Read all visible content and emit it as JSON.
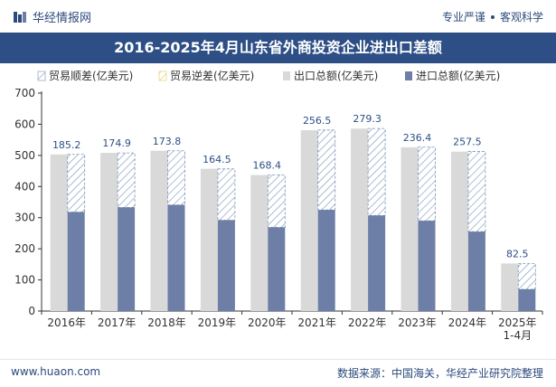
{
  "header": {
    "brand": "华经情报网",
    "tagline_left": "专业严谨",
    "tagline_right": "客观科学"
  },
  "title_bar": "2016-2025年4月山东省外商投资企业进出口差额",
  "footer": {
    "website": "www.huaon.com",
    "source": "数据来源：中国海关，华经产业研究院整理"
  },
  "colors": {
    "export": "#d9d9d9",
    "import": "#6d7fa6",
    "surplus_hatch": "#7b93b8",
    "deficit_hatch": "#e5c95e",
    "axis": "#333333",
    "title_bg": "#2d4f86"
  },
  "chart_data": {
    "type": "bar",
    "title": "2016-2025年4月山东省外商投资企业进出口差额",
    "categories": [
      "2016年",
      "2017年",
      "2018年",
      "2019年",
      "2020年",
      "2021年",
      "2022年",
      "2023年",
      "2024年",
      "2025年\n1-4月"
    ],
    "series": [
      {
        "name": "贸易顺差(亿美元)",
        "values": [
          185.2,
          174.9,
          173.8,
          164.5,
          168.4,
          256.5,
          279.3,
          236.4,
          257.5,
          82.5
        ]
      },
      {
        "name": "贸易逆差(亿美元)",
        "values": [
          0,
          0,
          0,
          0,
          0,
          0,
          0,
          0,
          0,
          0
        ]
      },
      {
        "name": "出口总额(亿美元)",
        "values": [
          503,
          508,
          515,
          457,
          437,
          581,
          586,
          526,
          512,
          153
        ]
      },
      {
        "name": "进口总额(亿美元)",
        "values": [
          318,
          333,
          341,
          292,
          269,
          325,
          307,
          290,
          255,
          70
        ]
      }
    ],
    "ylim": [
      0,
      700
    ],
    "yticks": [
      0,
      100,
      200,
      300,
      400,
      500,
      600,
      700
    ],
    "xlabel": "",
    "ylabel": "",
    "legend_position": "top"
  }
}
